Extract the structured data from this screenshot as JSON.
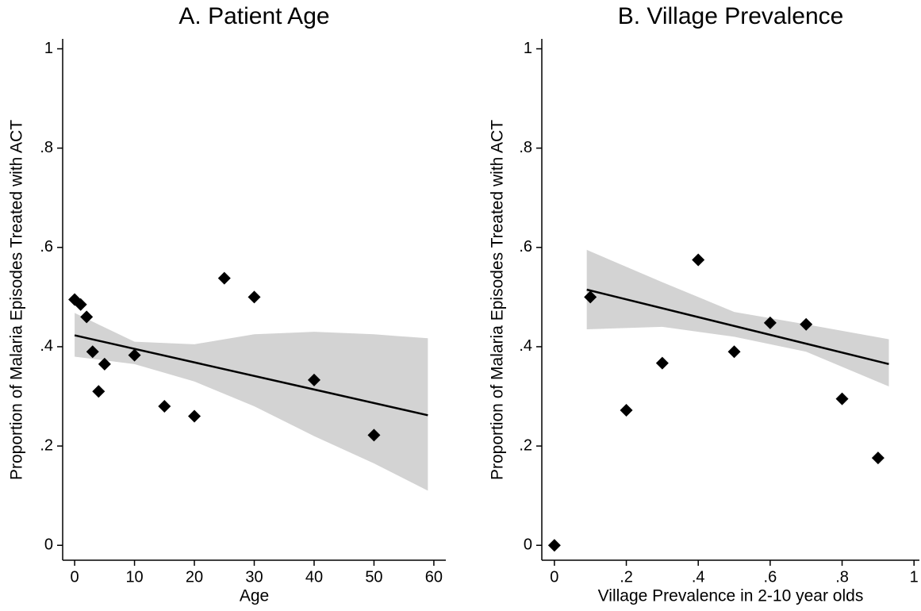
{
  "chart_data": [
    {
      "type": "scatter",
      "title": "A. Patient Age",
      "xlabel": "Age",
      "ylabel": "Proportion of Malaria Episodes Treated with ACT",
      "x": [
        0,
        1,
        2,
        3,
        4,
        5,
        10,
        15,
        20,
        25,
        30,
        40,
        50
      ],
      "values": [
        0.495,
        0.485,
        0.46,
        0.39,
        0.31,
        0.365,
        0.383,
        0.28,
        0.26,
        0.538,
        0.5,
        0.333,
        0.222
      ],
      "color": "#000000",
      "fit": {
        "x": [
          0,
          59
        ],
        "values": [
          0.423,
          0.262
        ],
        "color": "#000000"
      },
      "ci": {
        "x": [
          0,
          10,
          20,
          30,
          40,
          50,
          59
        ],
        "lower": [
          0.38,
          0.365,
          0.33,
          0.28,
          0.22,
          0.165,
          0.11
        ],
        "upper": [
          0.468,
          0.41,
          0.405,
          0.425,
          0.43,
          0.425,
          0.417
        ],
        "color": "#d3d3d3"
      },
      "xlim": [
        -2,
        62
      ],
      "ylim": [
        -0.03,
        1.02
      ],
      "xticks": [
        0,
        10,
        20,
        30,
        40,
        50,
        60
      ],
      "yticks": [
        0,
        {
          "value": 0.2,
          "label": ".2"
        },
        {
          "value": 0.4,
          "label": ".4"
        },
        {
          "value": 0.6,
          "label": ".6"
        },
        {
          "value": 0.8,
          "label": ".8"
        },
        1
      ]
    },
    {
      "type": "scatter",
      "title": "B. Village Prevalence",
      "xlabel": "Village Prevalence in 2-10 year olds",
      "ylabel": "Proportion of Malaria Episodes Treated with ACT",
      "x": [
        0,
        0.1,
        0.2,
        0.3,
        0.4,
        0.5,
        0.6,
        0.7,
        0.8,
        0.9
      ],
      "values": [
        0,
        0.5,
        0.272,
        0.367,
        0.575,
        0.39,
        0.448,
        0.445,
        0.295,
        0.176
      ],
      "color": "#000000",
      "fit": {
        "x": [
          0.09,
          0.93
        ],
        "values": [
          0.515,
          0.365
        ],
        "color": "#000000"
      },
      "ci": {
        "x": [
          0.09,
          0.3,
          0.5,
          0.7,
          0.93
        ],
        "lower": [
          0.435,
          0.44,
          0.42,
          0.39,
          0.32
        ],
        "upper": [
          0.595,
          0.53,
          0.47,
          0.445,
          0.415
        ],
        "color": "#d3d3d3"
      },
      "xlim": [
        -0.035,
        1.015
      ],
      "ylim": [
        -0.03,
        1.02
      ],
      "xticks": [
        0,
        {
          "value": 0.2,
          "label": ".2"
        },
        {
          "value": 0.4,
          "label": ".4"
        },
        {
          "value": 0.6,
          "label": ".6"
        },
        {
          "value": 0.8,
          "label": ".8"
        },
        1
      ],
      "yticks": [
        0,
        {
          "value": 0.2,
          "label": ".2"
        },
        {
          "value": 0.4,
          "label": ".4"
        },
        {
          "value": 0.6,
          "label": ".6"
        },
        {
          "value": 0.8,
          "label": ".8"
        },
        1
      ]
    }
  ]
}
